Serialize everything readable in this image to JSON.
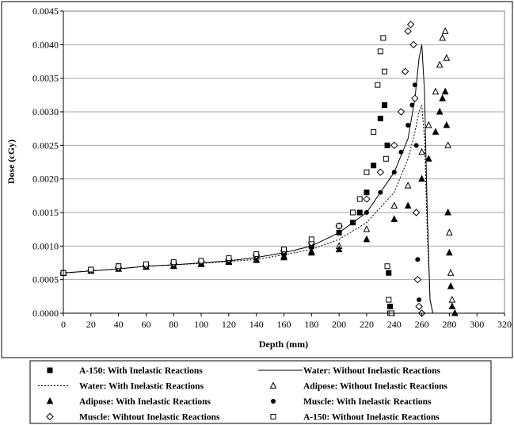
{
  "chart_data": {
    "type": "scatter",
    "xlabel": "Depth (mm)",
    "ylabel": "Dose (cGy)",
    "xlim": [
      0,
      320
    ],
    "ylim": [
      0,
      0.0045
    ],
    "xticks": [
      0,
      20,
      40,
      60,
      80,
      100,
      120,
      140,
      160,
      180,
      200,
      220,
      240,
      260,
      280,
      300,
      320
    ],
    "yticks": [
      "0.0000",
      "0.0005",
      "0.0010",
      "0.0015",
      "0.0020",
      "0.0025",
      "0.0030",
      "0.0035",
      "0.0040",
      "0.0045"
    ],
    "grid": "horizontal",
    "legend_position": "bottom",
    "series": [
      {
        "name": "A-150: With Inelastic Reactions",
        "marker": "filled-square",
        "x": [
          0,
          20,
          40,
          60,
          80,
          100,
          120,
          140,
          160,
          180,
          200,
          210,
          215,
          220,
          225,
          230,
          233,
          235,
          236,
          237,
          238
        ],
        "y": [
          0.0006,
          0.00065,
          0.0007,
          0.00072,
          0.00075,
          0.00077,
          0.0008,
          0.00085,
          0.0009,
          0.001,
          0.0012,
          0.00135,
          0.0015,
          0.0018,
          0.0022,
          0.0029,
          0.0031,
          0.0025,
          0.0006,
          0.0001,
          0.0
        ]
      },
      {
        "name": "Water: Without Inelastic Reactions",
        "marker": "solid-line",
        "x": [
          0,
          20,
          40,
          60,
          80,
          100,
          120,
          140,
          160,
          180,
          200,
          220,
          240,
          250,
          255,
          258,
          260,
          262,
          264,
          266,
          268
        ],
        "y": [
          0.0006,
          0.00063,
          0.00066,
          0.0007,
          0.00072,
          0.00075,
          0.00078,
          0.00083,
          0.0009,
          0.001,
          0.0012,
          0.0015,
          0.0021,
          0.0026,
          0.0032,
          0.0038,
          0.004,
          0.0033,
          0.0015,
          0.0002,
          0.0
        ]
      },
      {
        "name": "Water: With Inelastic Reactions",
        "marker": "dotted-line",
        "x": [
          0,
          20,
          40,
          60,
          80,
          100,
          120,
          140,
          160,
          180,
          200,
          220,
          240,
          250,
          255,
          258,
          260,
          262,
          264,
          266,
          268
        ],
        "y": [
          0.0006,
          0.00063,
          0.00066,
          0.0007,
          0.00072,
          0.00074,
          0.00077,
          0.0008,
          0.00087,
          0.00095,
          0.0011,
          0.00135,
          0.0018,
          0.0023,
          0.0027,
          0.003,
          0.0031,
          0.0026,
          0.0012,
          0.0002,
          0.0
        ]
      },
      {
        "name": "Adipose: Without Inelastic Reactions",
        "marker": "open-triangle",
        "x": [
          0,
          20,
          40,
          60,
          80,
          100,
          120,
          140,
          160,
          180,
          200,
          220,
          240,
          250,
          260,
          265,
          270,
          273,
          275,
          277,
          278,
          279,
          280,
          281,
          282,
          284
        ],
        "y": [
          0.0006,
          0.00063,
          0.00066,
          0.00069,
          0.00071,
          0.00074,
          0.00077,
          0.0008,
          0.00085,
          0.00092,
          0.001,
          0.00125,
          0.0016,
          0.0019,
          0.0024,
          0.0028,
          0.0033,
          0.0037,
          0.0041,
          0.0042,
          0.0038,
          0.0025,
          0.0012,
          0.0006,
          0.0002,
          0.0
        ]
      },
      {
        "name": "Adipose: With Inelastic Reactions",
        "marker": "filled-triangle",
        "x": [
          0,
          20,
          40,
          60,
          80,
          100,
          120,
          140,
          160,
          180,
          200,
          220,
          240,
          250,
          260,
          265,
          270,
          273,
          275,
          277,
          278,
          279,
          280,
          281,
          282,
          284
        ],
        "y": [
          0.0006,
          0.00063,
          0.00066,
          0.00069,
          0.0007,
          0.00073,
          0.00076,
          0.00079,
          0.00083,
          0.0009,
          0.00095,
          0.0011,
          0.0014,
          0.0016,
          0.002,
          0.0023,
          0.0027,
          0.003,
          0.0032,
          0.0033,
          0.0028,
          0.0015,
          0.0009,
          0.0004,
          0.0001,
          0.0
        ]
      },
      {
        "name": "Muscle: With Inelastic Reactions",
        "marker": "filled-circle",
        "x": [
          0,
          20,
          40,
          60,
          80,
          100,
          120,
          140,
          160,
          180,
          200,
          220,
          230,
          240,
          245,
          250,
          253,
          255,
          256,
          257,
          258,
          260
        ],
        "y": [
          0.0006,
          0.00064,
          0.00068,
          0.0007,
          0.00073,
          0.00076,
          0.00079,
          0.00084,
          0.00091,
          0.001,
          0.0012,
          0.0015,
          0.0018,
          0.0021,
          0.0024,
          0.0028,
          0.0031,
          0.0034,
          0.0025,
          0.0008,
          0.0002,
          0.0
        ]
      },
      {
        "name": "Muscle: Wihtout Inelastic Reactions",
        "marker": "open-diamond",
        "x": [
          0,
          20,
          40,
          60,
          80,
          100,
          120,
          140,
          160,
          180,
          200,
          220,
          230,
          240,
          245,
          248,
          250,
          252,
          254,
          255,
          256,
          257,
          258,
          260
        ],
        "y": [
          0.0006,
          0.00064,
          0.00068,
          0.00071,
          0.00074,
          0.00077,
          0.0008,
          0.00086,
          0.00093,
          0.00105,
          0.0013,
          0.0017,
          0.0021,
          0.0025,
          0.003,
          0.0036,
          0.0042,
          0.0043,
          0.004,
          0.0032,
          0.0015,
          0.0005,
          0.0001,
          0.0
        ]
      },
      {
        "name": "A-150: Without Inelastic Reactions",
        "marker": "open-square",
        "x": [
          0,
          20,
          40,
          60,
          80,
          100,
          120,
          140,
          160,
          180,
          200,
          210,
          215,
          220,
          225,
          228,
          230,
          232,
          233,
          234,
          235,
          236,
          237,
          238
        ],
        "y": [
          0.0006,
          0.00065,
          0.0007,
          0.00073,
          0.00076,
          0.00078,
          0.00082,
          0.00088,
          0.00095,
          0.0011,
          0.0013,
          0.0015,
          0.0017,
          0.0021,
          0.0027,
          0.0034,
          0.0039,
          0.0041,
          0.0036,
          0.0023,
          0.0007,
          0.0002,
          0.0,
          0.0
        ]
      }
    ]
  }
}
